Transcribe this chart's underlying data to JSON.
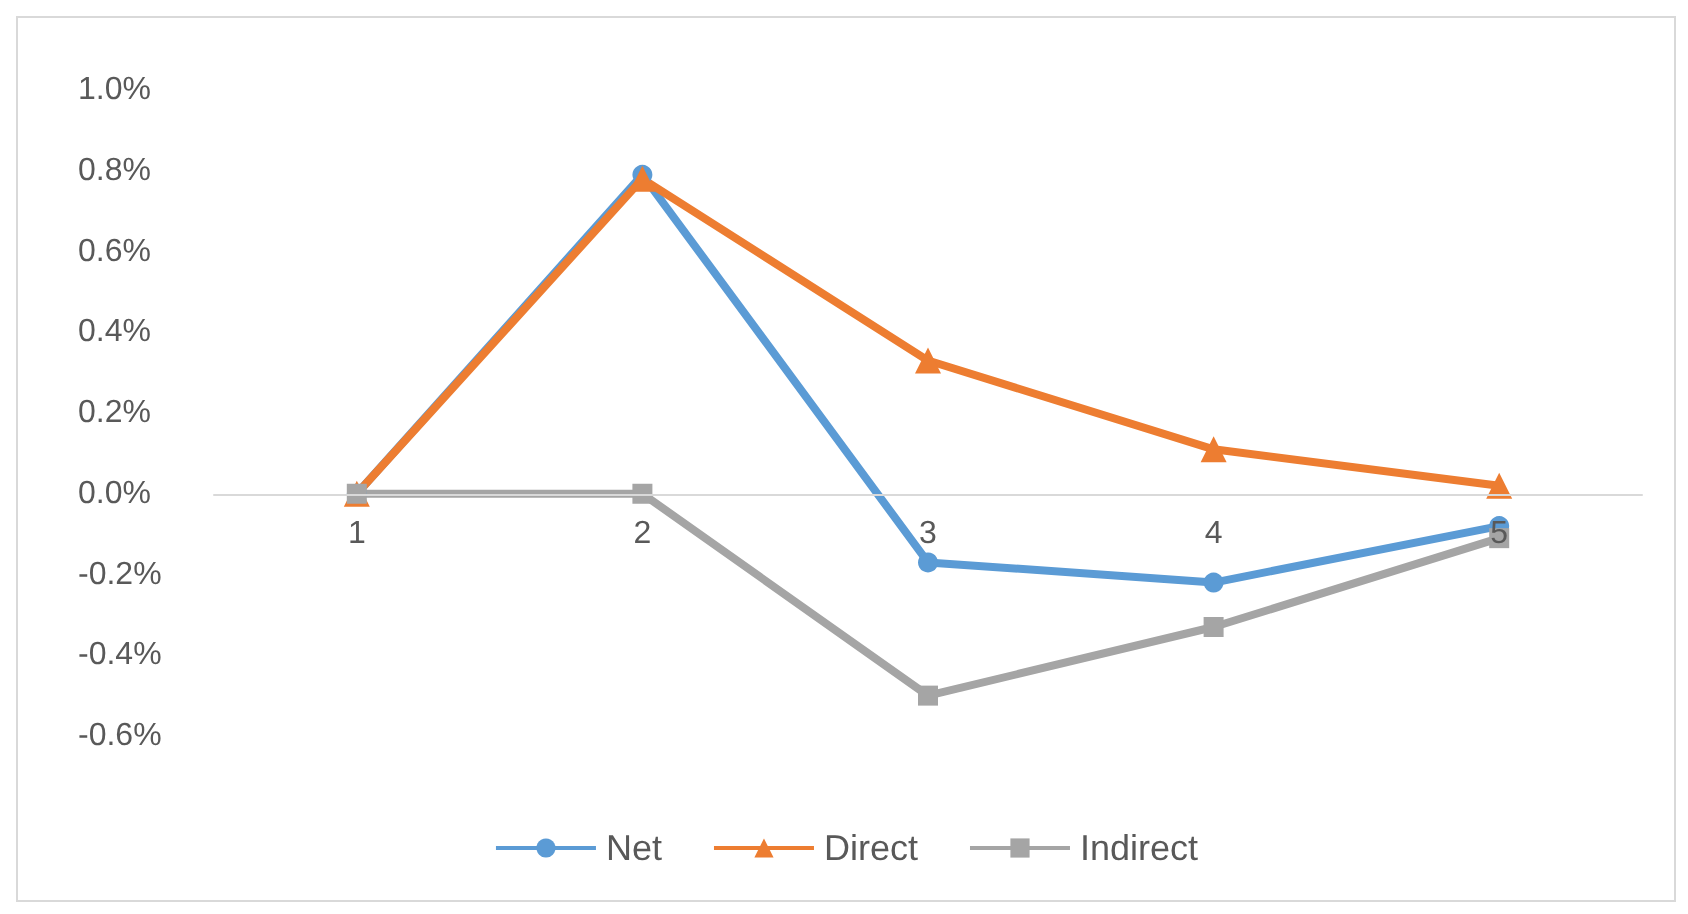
{
  "chart_data": {
    "type": "line",
    "categories": [
      "1",
      "2",
      "3",
      "4",
      "5"
    ],
    "series": [
      {
        "name": "Net",
        "color": "#5b9bd5",
        "marker": "circle",
        "values": [
          0,
          0.79,
          -0.17,
          -0.22,
          -0.08
        ]
      },
      {
        "name": "Direct",
        "color": "#ed7d31",
        "marker": "triangle",
        "values": [
          0,
          0.78,
          0.33,
          0.11,
          0.02
        ]
      },
      {
        "name": "Indirect",
        "color": "#a5a5a5",
        "marker": "square",
        "values": [
          0,
          0,
          -0.5,
          -0.33,
          -0.11
        ]
      }
    ],
    "ylim": [
      -0.6,
      1.0
    ],
    "yticks": [
      {
        "value": -0.6,
        "label": "-0.6%"
      },
      {
        "value": -0.4,
        "label": "-0.4%"
      },
      {
        "value": -0.2,
        "label": "-0.2%"
      },
      {
        "value": 0,
        "label": "0.0%"
      },
      {
        "value": 0.2,
        "label": "0.2%"
      },
      {
        "value": 0.4,
        "label": "0.4%"
      },
      {
        "value": 0.6,
        "label": "0.6%"
      },
      {
        "value": 0.8,
        "label": "0.8%"
      },
      {
        "value": 1.0,
        "label": "1.0%"
      }
    ],
    "grid": false,
    "legend": "bottom"
  }
}
